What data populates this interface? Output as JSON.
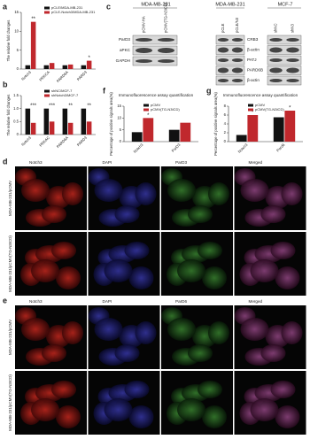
{
  "panel_a": {
    "label": "a",
    "chart": {
      "type": "bar",
      "y_label": "The relative fold changes",
      "categories": [
        "Notch3",
        "PRKCA",
        "PARD6A",
        "PARD3"
      ],
      "series": [
        {
          "name": "pCLE/MDA-MB-231",
          "color": "#111111",
          "values": [
            1,
            1,
            1,
            1
          ]
        },
        {
          "name": "pCLE-Notch3/MDA-MB-231",
          "color": "#c0282d",
          "values": [
            12.5,
            1.6,
            1.2,
            2.2
          ]
        }
      ],
      "ylim": [
        0,
        15
      ],
      "yticks": [
        0,
        5,
        10,
        15
      ],
      "annotations": [
        {
          "text": "**",
          "category": "Notch3"
        },
        {
          "text": "*",
          "category": "PARD3"
        }
      ]
    }
  },
  "panel_b": {
    "label": "b",
    "chart": {
      "type": "bar",
      "y_label": "The relative fold changes",
      "categories": [
        "Notch3",
        "PRKAC",
        "PARD6A",
        "PARD3"
      ],
      "series": [
        {
          "name": "shNC/MCF-7",
          "color": "#111111",
          "values": [
            1,
            1,
            1,
            1
          ]
        },
        {
          "name": "shNotch3/MCF-7",
          "color": "#c0282d",
          "values": [
            0.45,
            0.5,
            0.45,
            0.5
          ]
        }
      ],
      "ylim": [
        0,
        1.5
      ],
      "yticks": [
        0,
        0.5,
        {
          "value": 1,
          "label": "1.0"
        },
        1.5
      ],
      "annotations": [
        {
          "text": "***",
          "category": "Notch3"
        },
        {
          "text": "***",
          "category": "PRKAC"
        },
        {
          "text": "**",
          "category": "PARD6A"
        },
        {
          "text": "**",
          "category": "PARD3"
        }
      ]
    }
  },
  "panel_c": {
    "label": "c",
    "blots": [
      {
        "header": "MDA-MB-231",
        "columns": [
          "pCMV-HA",
          "pCMV(TG-N3ICD)"
        ],
        "rows": [
          "ParD3",
          "aPKC",
          "GAPDH"
        ]
      },
      {
        "header": "MDA-MB-231",
        "columns": [
          "pCLE",
          "pCLE/N3"
        ],
        "rows": [
          "CRB3",
          "β-actin",
          "PATJ",
          "PARD6B",
          "β-actin"
        ]
      },
      {
        "header": "MCF-7",
        "columns": [
          "shNC",
          "shN3"
        ]
      }
    ]
  },
  "panel_f": {
    "label": "f",
    "chart": {
      "type": "bar",
      "title": "Immunofluorescence assay quantification",
      "y_label": "Percentage of positive signals area(%)",
      "categories": [
        "Notch3",
        "ParD3"
      ],
      "series": [
        {
          "name": "pCMV",
          "color": "#111111",
          "values": [
            4,
            5
          ]
        },
        {
          "name": "pCMV(TG-N3ICD)",
          "color": "#c0282d",
          "values": [
            10,
            8
          ]
        }
      ],
      "ylim": [
        0,
        15
      ],
      "yticks": [
        0,
        5,
        10,
        15
      ],
      "annotations": [
        {
          "text": "*",
          "category": "Notch3"
        }
      ]
    }
  },
  "panel_g": {
    "label": "g",
    "chart": {
      "type": "bar",
      "title": "Immunofluorescence assay quantification",
      "y_label": "Percentage of positive signals area(%)",
      "categories": [
        "Notch3",
        "Pard6"
      ],
      "series": [
        {
          "name": "pCMV",
          "color": "#111111",
          "values": [
            1.5,
            5.5
          ]
        },
        {
          "name": "pCMV(TG-N3ICD)",
          "color": "#c0282d",
          "values": [
            6,
            7
          ]
        }
      ],
      "ylim": [
        0,
        8
      ],
      "yticks": [
        0,
        2,
        4,
        6,
        8
      ],
      "annotations": [
        {
          "text": "*",
          "category": "Notch3"
        },
        {
          "text": "*",
          "category": "Pard6"
        }
      ]
    }
  },
  "panel_d": {
    "label": "d",
    "columns": [
      "Notch3",
      "DAPI",
      "ParD3",
      "Merged"
    ],
    "rows": [
      "MDA-MB-231/pCMV",
      "MDA-MB-231/pCMV(TG-N3ICD)"
    ]
  },
  "panel_e": {
    "label": "e",
    "columns": [
      "Notch3",
      "DAPI",
      "ParD6",
      "Merged"
    ],
    "rows": [
      "MDA-MB-231/pCMV",
      "MDA-MB-231/pCMV(TG-N3ICD)"
    ]
  }
}
